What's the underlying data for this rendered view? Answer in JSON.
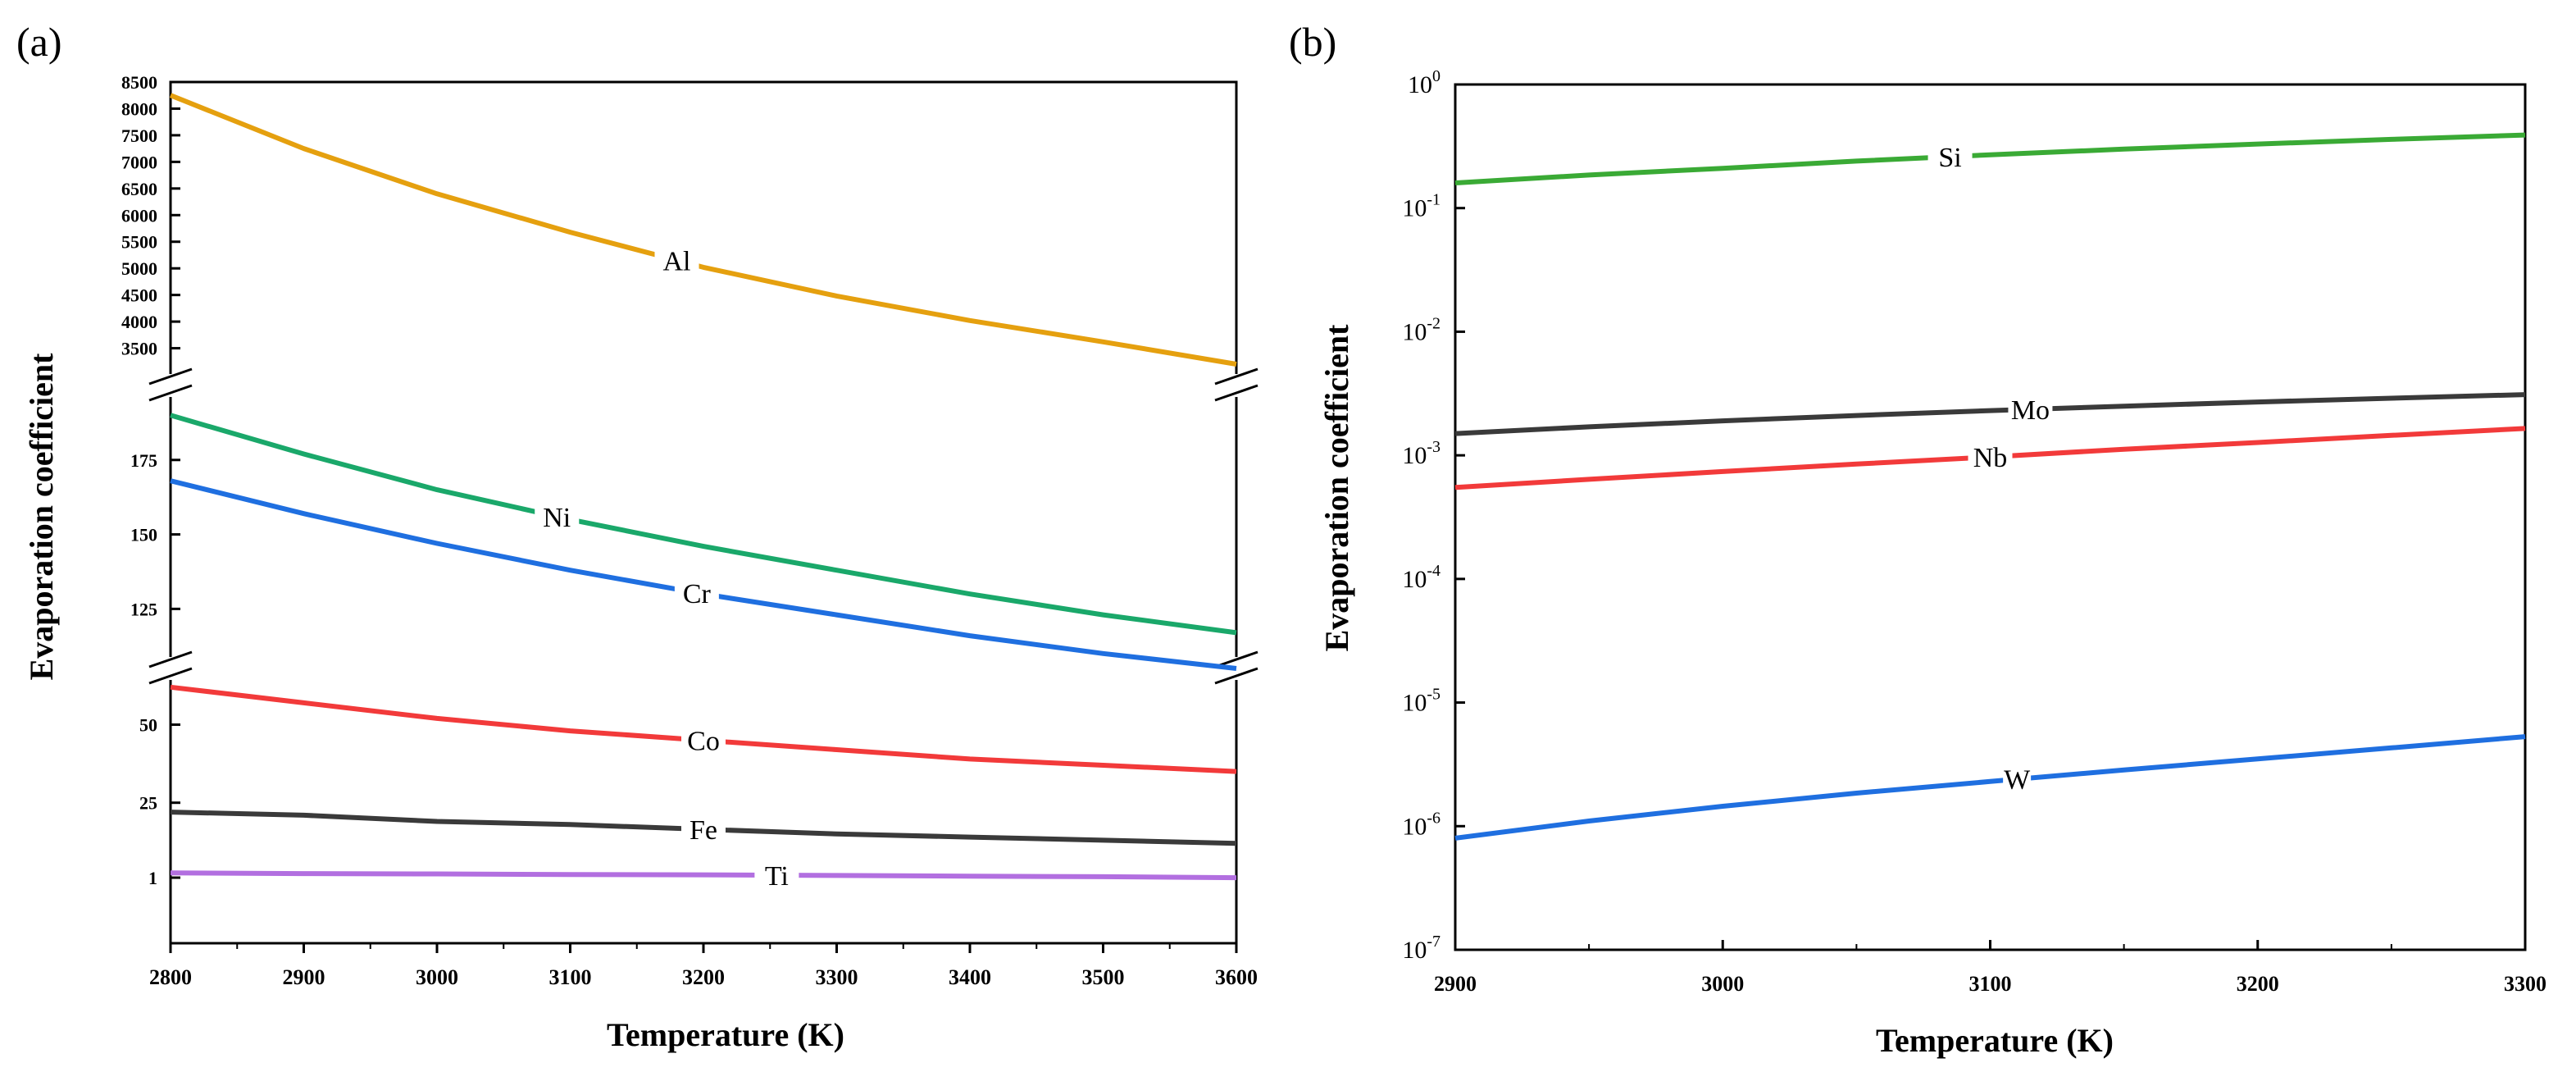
{
  "chart_data": [
    {
      "panel_label": "(a)",
      "type": "line",
      "xlabel": "Temperature (K)",
      "ylabel": "Evaporation coefficient",
      "xlim": [
        2800,
        3600
      ],
      "xticks": [
        "2800",
        "2900",
        "3000",
        "3100",
        "3200",
        "3300",
        "3400",
        "3500",
        "3600"
      ],
      "y_axis_breaks": true,
      "segments": [
        {
          "ylim": [
            2800,
            8500
          ],
          "yticks": [
            "3500",
            "4000",
            "4500",
            "5000",
            "5500",
            "6000",
            "6500",
            "7000",
            "7500",
            "8000",
            "8500"
          ]
        },
        {
          "ylim": [
            105,
            200
          ],
          "yticks": [
            "125",
            "150",
            "175"
          ]
        },
        {
          "ylim": [
            -20,
            68
          ],
          "yticks": [
            "1",
            "25",
            "50"
          ]
        }
      ],
      "series": [
        {
          "name": "Al",
          "color": "#E5A00F",
          "segment": 0,
          "label_x": 3180,
          "x": [
            2800,
            2900,
            3000,
            3100,
            3200,
            3300,
            3400,
            3500,
            3600
          ],
          "values": [
            8250,
            7250,
            6400,
            5680,
            5020,
            4480,
            4020,
            3620,
            3200
          ]
        },
        {
          "name": "Ni",
          "color": "#1AA86A",
          "segment": 1,
          "label_x": 3090,
          "x": [
            2800,
            2900,
            3000,
            3100,
            3200,
            3300,
            3400,
            3500,
            3600
          ],
          "values": [
            190,
            177,
            165,
            155,
            146,
            138,
            130,
            123,
            117
          ]
        },
        {
          "name": "Cr",
          "color": "#1F6FE0",
          "segment": 1,
          "label_x": 3195,
          "x": [
            2800,
            2900,
            3000,
            3100,
            3200,
            3300,
            3400,
            3500,
            3600
          ],
          "values": [
            168,
            157,
            147,
            138,
            130,
            123,
            116,
            110,
            105
          ]
        },
        {
          "name": "Co",
          "color": "#F23A3A",
          "segment": 2,
          "label_x": 3200,
          "x": [
            2800,
            2900,
            3000,
            3100,
            3200,
            3300,
            3400,
            3500,
            3600
          ],
          "values": [
            62,
            57,
            52,
            48,
            45,
            42,
            39,
            37,
            35
          ]
        },
        {
          "name": "Fe",
          "color": "#3A3A3A",
          "segment": 2,
          "label_x": 3200,
          "x": [
            2800,
            2900,
            3000,
            3100,
            3200,
            3300,
            3400,
            3500,
            3600
          ],
          "values": [
            22,
            21,
            19,
            18,
            16.5,
            15,
            14,
            13,
            12
          ]
        },
        {
          "name": "Ti",
          "color": "#B26FE0",
          "segment": 2,
          "label_x": 3255,
          "x": [
            2800,
            2900,
            3000,
            3100,
            3200,
            3300,
            3400,
            3500,
            3600
          ],
          "values": [
            2.5,
            2.3,
            2.2,
            2.0,
            1.9,
            1.7,
            1.5,
            1.3,
            1.0
          ]
        }
      ]
    },
    {
      "panel_label": "(b)",
      "type": "line",
      "yscale": "log",
      "xlabel": "Temperature (K)",
      "ylabel": "Evaporation coefficient",
      "xlim": [
        2900,
        3300
      ],
      "ylim": [
        1e-07,
        1
      ],
      "xticks": [
        "2900",
        "3000",
        "3100",
        "3200",
        "3300"
      ],
      "yticks": [
        {
          "base": "10",
          "exp": "0"
        },
        {
          "base": "10",
          "exp": "-1"
        },
        {
          "base": "10",
          "exp": "-2"
        },
        {
          "base": "10",
          "exp": "-3"
        },
        {
          "base": "10",
          "exp": "-4"
        },
        {
          "base": "10",
          "exp": "-5"
        },
        {
          "base": "10",
          "exp": "-6"
        },
        {
          "base": "10",
          "exp": "-7"
        }
      ],
      "series": [
        {
          "name": "Si",
          "color": "#3AAA35",
          "label_x": 3085,
          "x": [
            2900,
            2950,
            3000,
            3050,
            3100,
            3150,
            3200,
            3250,
            3300
          ],
          "values": [
            0.16,
            0.185,
            0.21,
            0.24,
            0.27,
            0.3,
            0.33,
            0.36,
            0.39
          ]
        },
        {
          "name": "Mo",
          "color": "#3A3A3A",
          "label_x": 3115,
          "x": [
            2900,
            2950,
            3000,
            3050,
            3100,
            3150,
            3200,
            3250,
            3300
          ],
          "values": [
            0.0015,
            0.0017,
            0.0019,
            0.0021,
            0.0023,
            0.0025,
            0.0027,
            0.0029,
            0.0031
          ]
        },
        {
          "name": "Nb",
          "color": "#F23A3A",
          "label_x": 3100,
          "x": [
            2900,
            2950,
            3000,
            3050,
            3100,
            3150,
            3200,
            3250,
            3300
          ],
          "values": [
            0.00055,
            0.00064,
            0.00074,
            0.00085,
            0.00097,
            0.00112,
            0.00127,
            0.00145,
            0.00165
          ]
        },
        {
          "name": "W",
          "color": "#1F6FE0",
          "label_x": 3110,
          "x": [
            2900,
            2950,
            3000,
            3050,
            3100,
            3150,
            3200,
            3250,
            3300
          ],
          "values": [
            8e-07,
            1.1e-06,
            1.45e-06,
            1.85e-06,
            2.3e-06,
            2.85e-06,
            3.5e-06,
            4.3e-06,
            5.3e-06
          ]
        }
      ]
    }
  ]
}
